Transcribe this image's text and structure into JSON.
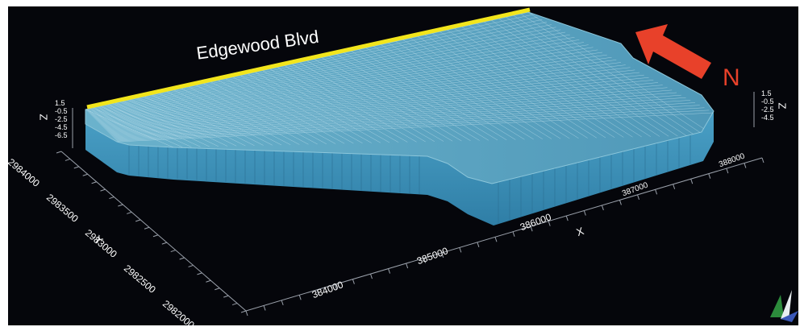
{
  "street_label": "Edgewood Blvd",
  "north_label": "N",
  "axes": {
    "x_title": "X",
    "y_title": "Y",
    "z_title": "Z",
    "x_ticks": [
      "384000",
      "385000",
      "386000",
      "387000",
      "388000"
    ],
    "y_ticks": [
      "2984000",
      "2983500",
      "2983000",
      "2982500",
      "2982000"
    ],
    "z_ticks_left": [
      "1.5",
      "-0.5",
      "-2.5",
      "-4.5",
      "-6.5"
    ],
    "z_ticks_right": [
      "1.5",
      "-0.5",
      "-2.5",
      "-4.5"
    ]
  },
  "colors": {
    "background": "#05060b",
    "model_top": "#5fa8c4",
    "model_side": "#3b8db4",
    "grid_lines": "#b9dbe8",
    "street_line": "#f2e51c",
    "north_arrow": "#e8412a"
  }
}
